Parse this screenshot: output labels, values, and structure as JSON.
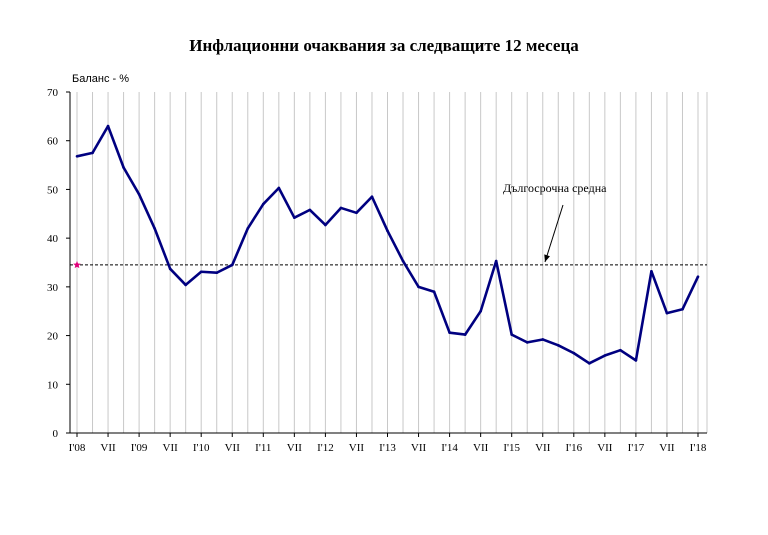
{
  "chart_data": {
    "type": "line",
    "title": "Инфлационни очаквания за следващите 12 месеца",
    "ylabel": "Баланс - %",
    "xlabel": "",
    "ylim": [
      0,
      70
    ],
    "yticks": [
      0,
      10,
      20,
      30,
      40,
      50,
      60,
      70
    ],
    "grid": "vertical",
    "x_tick_labels": [
      "I'08",
      "VII",
      "I'09",
      "VII",
      "I'10",
      "VII",
      "I'11",
      "VII",
      "I'12",
      "VII",
      "I'13",
      "VII",
      "I'14",
      "VII",
      "I'15",
      "VII",
      "I'16",
      "VII",
      "I'17",
      "VII",
      "I'18"
    ],
    "series": [
      {
        "color": "#000080",
        "values": [
          56.8,
          57.5,
          63.0,
          54.5,
          49.0,
          42.0,
          33.7,
          30.4,
          33.1,
          32.9,
          34.5,
          42.0,
          47.0,
          50.3,
          44.2,
          45.8,
          42.7,
          46.2,
          45.2,
          48.5,
          41.5,
          35.3,
          30.0,
          29.0,
          20.6,
          20.2,
          25.0,
          35.3,
          20.2,
          18.6,
          19.2,
          18.0,
          16.4,
          14.3,
          15.9,
          17.0,
          14.9,
          33.2,
          24.6,
          25.4,
          32.1
        ]
      }
    ],
    "reference_line": {
      "label": "Дългосрочна средна",
      "value": 34.5,
      "style": "dashed",
      "color": "#000000",
      "marker_color": "#e0007a"
    }
  }
}
